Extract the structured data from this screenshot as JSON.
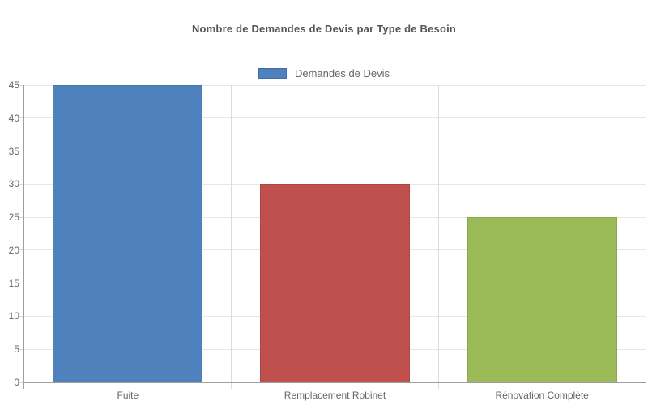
{
  "header": {
    "title": "Nombre de Demandes de Devis par Type de Besoin"
  },
  "legend": {
    "items": [
      {
        "label": "Demandes de Devis",
        "color": "#4f81bd"
      }
    ]
  },
  "chart_data": {
    "type": "bar",
    "title": "Nombre de Demandes de Devis par Type de Besoin",
    "categories": [
      "Fuite",
      "Remplacement Robinet",
      "Rénovation Complète"
    ],
    "series": [
      {
        "name": "Demandes de Devis",
        "values": [
          45,
          30,
          25
        ]
      }
    ],
    "bar_colors": [
      "#4f81bd",
      "#c0504d",
      "#9bbb59"
    ],
    "xlabel": "",
    "ylabel": "",
    "ylim": [
      0,
      45
    ],
    "yticks": [
      0,
      5,
      10,
      15,
      20,
      25,
      30,
      35,
      40,
      45
    ],
    "grid": "horizontal gridlines and vertical category separators",
    "legend_position": "top-center"
  },
  "colors": {
    "background": "#ffffff",
    "title_text": "#555555",
    "axis_label_text": "#666666",
    "gridline": "#e6e6e6",
    "category_separator": "#dcdcdc",
    "axis_line": "#9e9e9e"
  }
}
